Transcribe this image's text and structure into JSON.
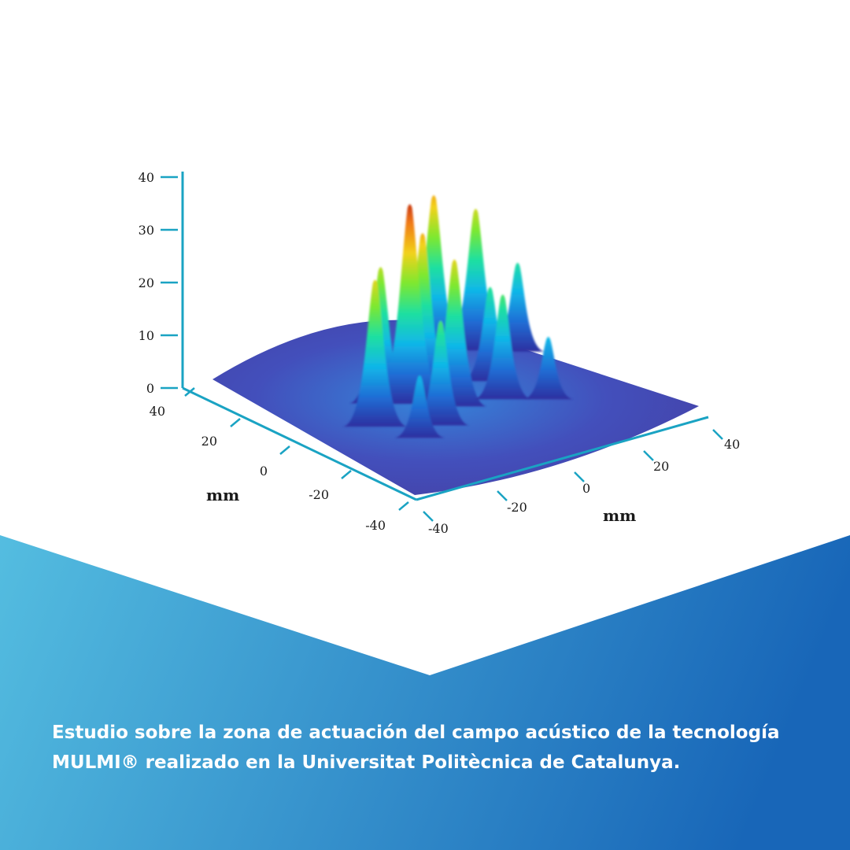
{
  "chart_data": {
    "type": "surface",
    "z_ticks": [
      "0",
      "10",
      "20",
      "30",
      "40"
    ],
    "x_ticks": [
      "-40",
      "-20",
      "0",
      "20",
      "40"
    ],
    "y_ticks": [
      "-40",
      "-20",
      "0",
      "20",
      "40"
    ],
    "x_label": "mm",
    "y_label": "mm",
    "zlim": [
      0,
      40
    ],
    "xlim": [
      -40,
      40
    ],
    "ylim": [
      -40,
      40
    ],
    "colormap": [
      "#2e2fa0",
      "#1f6fd6",
      "#10b7e8",
      "#1fe0a0",
      "#7de830",
      "#f2d21a",
      "#f07a16",
      "#b3100c"
    ],
    "peaks": [
      {
        "x": -10,
        "y": 2,
        "z": 38
      },
      {
        "x": -5,
        "y": 4,
        "z": 31
      },
      {
        "x": -24,
        "y": -4,
        "z": 28
      },
      {
        "x": -15,
        "y": 6,
        "z": 26
      },
      {
        "x": 10,
        "y": 20,
        "z": 31
      },
      {
        "x": 20,
        "y": 18,
        "z": 27
      },
      {
        "x": -3,
        "y": -5,
        "z": 28
      },
      {
        "x": 12,
        "y": 2,
        "z": 18
      },
      {
        "x": 0,
        "y": 12,
        "z": 18
      },
      {
        "x": -12,
        "y": -12,
        "z": 20
      },
      {
        "x": 8,
        "y": -8,
        "z": 20
      },
      {
        "x": 27,
        "y": 12,
        "z": 17
      },
      {
        "x": -20,
        "y": -15,
        "z": 12
      },
      {
        "x": 16,
        "y": -14,
        "z": 12
      }
    ],
    "colors": {
      "axis": "#1aa3c3",
      "floor": "#2f3a9e"
    }
  },
  "caption": {
    "line1": "Estudio sobre la zona de actuación del campo acústico de la tecnología",
    "line2": "MULMI® realizado en la Universitat Politècnica de Catalunya."
  },
  "colors": {
    "gradient_left": "#54bde0",
    "gradient_right": "#1866b8",
    "caption_text": "#ffffff"
  }
}
